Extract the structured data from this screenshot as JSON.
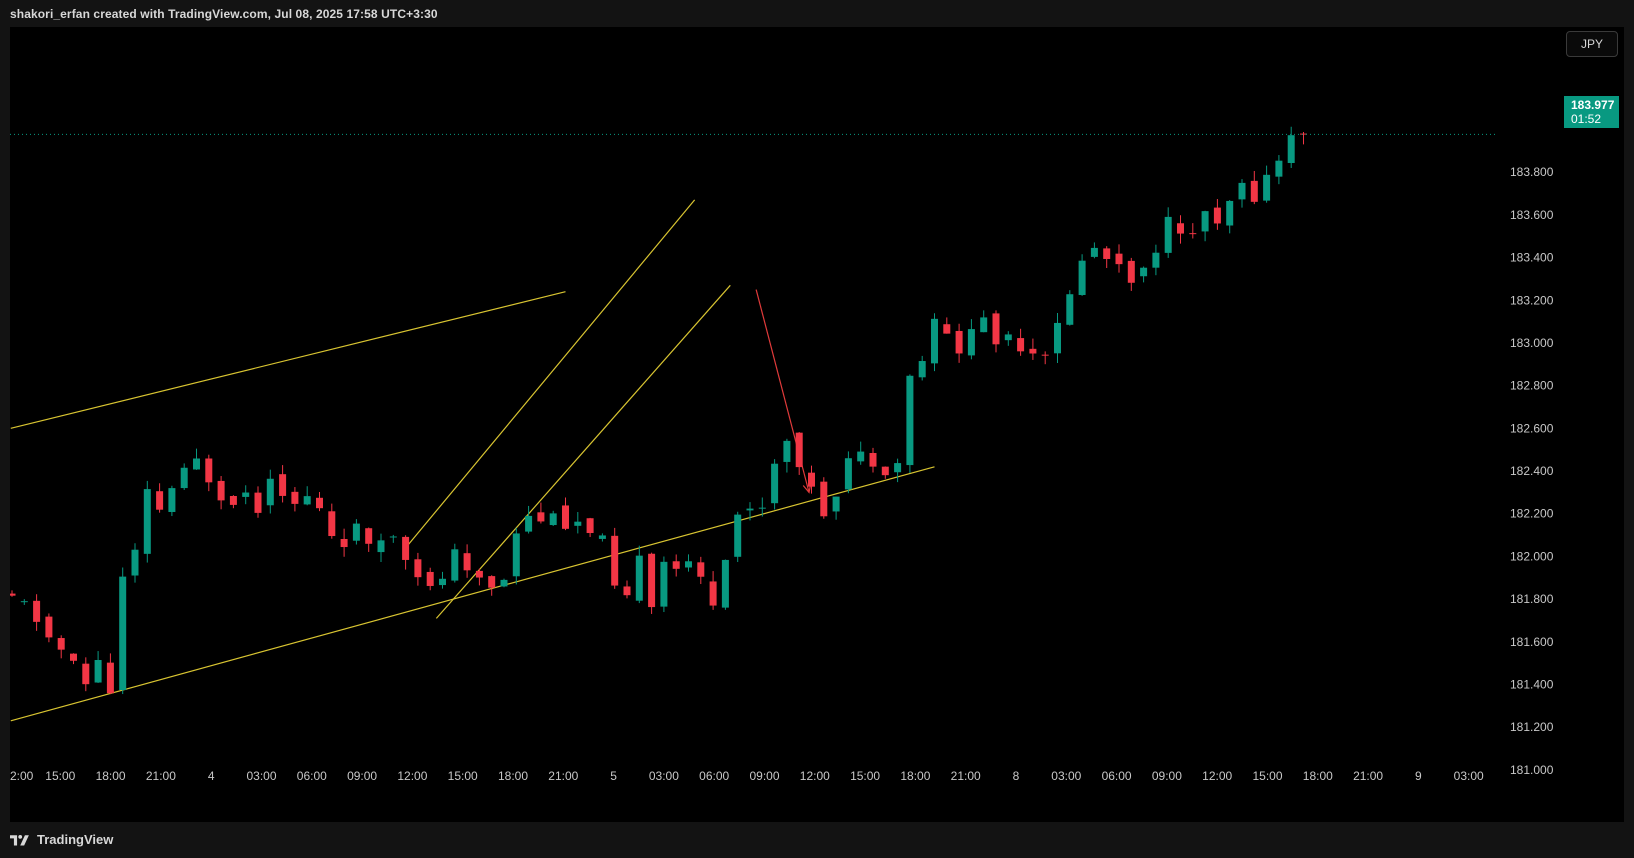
{
  "header": {
    "attribution": "shakori_erfan created with TradingView.com, Jul 08, 2025 17:58 UTC+3:30"
  },
  "currency_button": {
    "label": "JPY"
  },
  "price_tag": {
    "price": "183.977",
    "countdown": "01:52",
    "color": "#089981"
  },
  "footer": {
    "brand": "TradingView"
  },
  "colors": {
    "up": "#089981",
    "down": "#f23645",
    "channel": "#d8c431",
    "arrow": "#e03a3a",
    "background": "#000000"
  },
  "chart_data": {
    "type": "candlestick",
    "title": "",
    "y_axis": {
      "side": "right",
      "ylim": [
        180.92,
        184.48
      ],
      "ticks": [
        "181.000",
        "181.200",
        "181.400",
        "181.600",
        "181.800",
        "182.000",
        "182.200",
        "182.400",
        "182.600",
        "182.800",
        "183.000",
        "183.200",
        "183.400",
        "183.600",
        "183.800"
      ]
    },
    "x_axis": {
      "tick_labels": [
        "2:00",
        "15:00",
        "18:00",
        "21:00",
        "4",
        "03:00",
        "06:00",
        "09:00",
        "12:00",
        "15:00",
        "18:00",
        "21:00",
        "5",
        "03:00",
        "06:00",
        "09:00",
        "12:00",
        "15:00",
        "18:00",
        "21:00",
        "8",
        "03:00",
        "06:00",
        "09:00",
        "12:00",
        "15:00",
        "18:00",
        "21:00",
        "9",
        "03:00"
      ]
    },
    "last_price": 183.977,
    "price_path": [
      {
        "t": 0,
        "p": 181.82
      },
      {
        "t": 2,
        "p": 181.78
      },
      {
        "t": 4,
        "p": 181.62
      },
      {
        "t": 6,
        "p": 181.5
      },
      {
        "t": 7,
        "p": 181.4
      },
      {
        "t": 8,
        "p": 181.52
      },
      {
        "t": 9.4,
        "p": 181.3
      },
      {
        "t": 10,
        "p": 181.9
      },
      {
        "t": 11,
        "p": 182.02
      },
      {
        "t": 12,
        "p": 182.3
      },
      {
        "t": 13,
        "p": 182.22
      },
      {
        "t": 14,
        "p": 182.32
      },
      {
        "t": 15,
        "p": 182.4
      },
      {
        "t": 16,
        "p": 182.45
      },
      {
        "t": 17,
        "p": 182.36
      },
      {
        "t": 18,
        "p": 182.28
      },
      {
        "t": 19,
        "p": 182.26
      },
      {
        "t": 20,
        "p": 182.3
      },
      {
        "t": 21,
        "p": 182.22
      },
      {
        "t": 22,
        "p": 182.38
      },
      {
        "t": 23,
        "p": 182.3
      },
      {
        "t": 24,
        "p": 182.24
      },
      {
        "t": 25,
        "p": 182.28
      },
      {
        "t": 26,
        "p": 182.22
      },
      {
        "t": 27,
        "p": 182.1
      },
      {
        "t": 28,
        "p": 182.06
      },
      {
        "t": 29,
        "p": 182.14
      },
      {
        "t": 30,
        "p": 182.04
      },
      {
        "t": 31,
        "p": 182.08
      },
      {
        "t": 32,
        "p": 182.1
      },
      {
        "t": 33,
        "p": 182.0
      },
      {
        "t": 34,
        "p": 181.92
      },
      {
        "t": 35,
        "p": 181.85
      },
      {
        "t": 36,
        "p": 181.9
      },
      {
        "t": 37,
        "p": 182.02
      },
      {
        "t": 38,
        "p": 181.92
      },
      {
        "t": 39,
        "p": 181.9
      },
      {
        "t": 40,
        "p": 181.86
      },
      {
        "t": 41,
        "p": 181.9
      },
      {
        "t": 42,
        "p": 182.12
      },
      {
        "t": 43,
        "p": 182.2
      },
      {
        "t": 44,
        "p": 182.16
      },
      {
        "t": 45,
        "p": 182.22
      },
      {
        "t": 46,
        "p": 182.14
      },
      {
        "t": 47,
        "p": 182.16
      },
      {
        "t": 48,
        "p": 182.1
      },
      {
        "t": 49,
        "p": 182.08
      },
      {
        "t": 50,
        "p": 181.85
      },
      {
        "t": 51,
        "p": 181.8
      },
      {
        "t": 52,
        "p": 182.02
      },
      {
        "t": 53,
        "p": 181.78
      },
      {
        "t": 54,
        "p": 181.98
      },
      {
        "t": 55,
        "p": 181.95
      },
      {
        "t": 56,
        "p": 181.96
      },
      {
        "t": 57,
        "p": 181.9
      },
      {
        "t": 58,
        "p": 181.78
      },
      {
        "t": 59,
        "p": 182.0
      },
      {
        "t": 60,
        "p": 182.2
      },
      {
        "t": 61,
        "p": 182.22
      },
      {
        "t": 62,
        "p": 182.24
      },
      {
        "t": 63,
        "p": 182.44
      },
      {
        "t": 64,
        "p": 182.56
      },
      {
        "t": 65,
        "p": 182.4
      },
      {
        "t": 66,
        "p": 182.34
      },
      {
        "t": 67,
        "p": 182.2
      },
      {
        "t": 68,
        "p": 182.3
      },
      {
        "t": 69,
        "p": 182.46
      },
      {
        "t": 70,
        "p": 182.48
      },
      {
        "t": 71,
        "p": 182.44
      },
      {
        "t": 72,
        "p": 182.4
      },
      {
        "t": 73,
        "p": 182.44
      },
      {
        "t": 74,
        "p": 182.84
      },
      {
        "t": 75,
        "p": 182.92
      },
      {
        "t": 76,
        "p": 183.1
      },
      {
        "t": 77,
        "p": 183.04
      },
      {
        "t": 78,
        "p": 182.96
      },
      {
        "t": 79,
        "p": 183.06
      },
      {
        "t": 80,
        "p": 183.12
      },
      {
        "t": 81,
        "p": 183.0
      },
      {
        "t": 82,
        "p": 183.04
      },
      {
        "t": 83,
        "p": 182.98
      },
      {
        "t": 84,
        "p": 182.96
      },
      {
        "t": 85,
        "p": 182.96
      },
      {
        "t": 86,
        "p": 183.08
      },
      {
        "t": 87,
        "p": 183.22
      },
      {
        "t": 88,
        "p": 183.4
      },
      {
        "t": 89,
        "p": 183.44
      },
      {
        "t": 90,
        "p": 183.4
      },
      {
        "t": 91,
        "p": 183.38
      },
      {
        "t": 92,
        "p": 183.3
      },
      {
        "t": 93,
        "p": 183.34
      },
      {
        "t": 94,
        "p": 183.44
      },
      {
        "t": 95,
        "p": 183.58
      },
      {
        "t": 96,
        "p": 183.5
      },
      {
        "t": 97,
        "p": 183.52
      },
      {
        "t": 98,
        "p": 183.62
      },
      {
        "t": 99,
        "p": 183.54
      },
      {
        "t": 100,
        "p": 183.66
      },
      {
        "t": 101,
        "p": 183.74
      },
      {
        "t": 102,
        "p": 183.68
      },
      {
        "t": 103,
        "p": 183.78
      },
      {
        "t": 104,
        "p": 183.86
      },
      {
        "t": 105,
        "p": 183.97
      }
    ],
    "drawings": {
      "trendlines": [
        {
          "x1": -0.1,
          "y1": 182.6,
          "x2": 45,
          "y2": 183.24
        },
        {
          "x1": -0.1,
          "y1": 181.23,
          "x2": 75,
          "y2": 182.42
        },
        {
          "x1": 32,
          "y1": 182.04,
          "x2": 55.5,
          "y2": 183.67
        },
        {
          "x1": 34.5,
          "y1": 181.71,
          "x2": 58.4,
          "y2": 183.27
        }
      ],
      "arrow": {
        "x1": 60.5,
        "y1": 183.25,
        "x2": 64.8,
        "y2": 182.3
      }
    }
  }
}
